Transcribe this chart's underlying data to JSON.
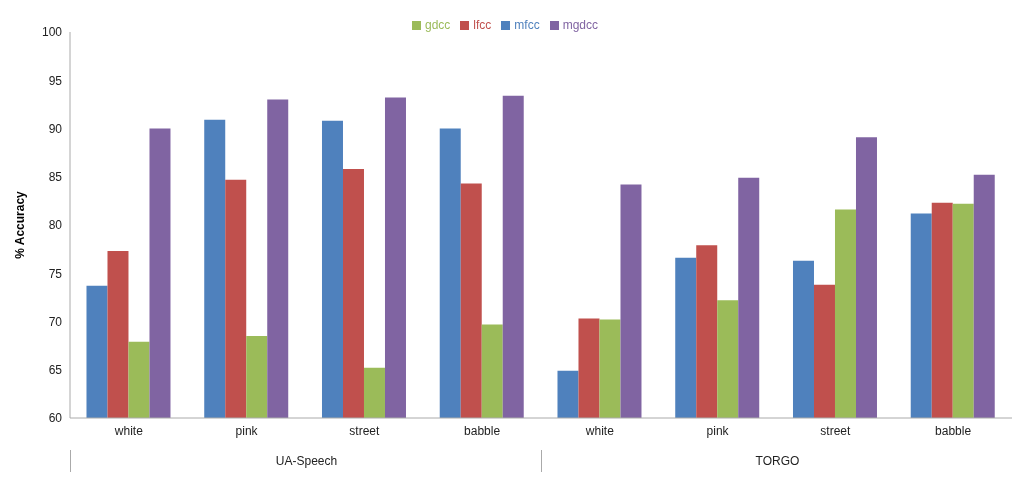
{
  "chart_data": {
    "type": "bar",
    "ylabel": "% Accuracy",
    "categories": [
      "white",
      "pink",
      "street",
      "babble",
      "white",
      "pink",
      "street",
      "babble"
    ],
    "series": [
      {
        "name": "mfcc",
        "color": "#4f81bd",
        "values": [
          73.7,
          90.9,
          90.8,
          90.0,
          64.9,
          76.6,
          76.3,
          81.2
        ]
      },
      {
        "name": "lfcc",
        "color": "#c0504d",
        "values": [
          77.3,
          84.7,
          85.8,
          84.3,
          70.3,
          77.9,
          73.8,
          82.3
        ]
      },
      {
        "name": "gdcc",
        "color": "#9bbb59",
        "values": [
          67.9,
          68.5,
          65.2,
          69.7,
          70.2,
          72.2,
          81.6,
          82.2
        ]
      },
      {
        "name": "mgdcc",
        "color": "#8064a2",
        "values": [
          90.0,
          93.0,
          93.2,
          93.4,
          84.2,
          84.9,
          89.1,
          85.2
        ]
      }
    ],
    "annotations": [
      "UA-Speech",
      "TORGO"
    ],
    "ylim": [
      60,
      100
    ],
    "yticks": [
      60,
      65,
      70,
      75,
      80,
      85,
      90,
      95,
      100
    ],
    "grid": false,
    "legend": "top"
  }
}
